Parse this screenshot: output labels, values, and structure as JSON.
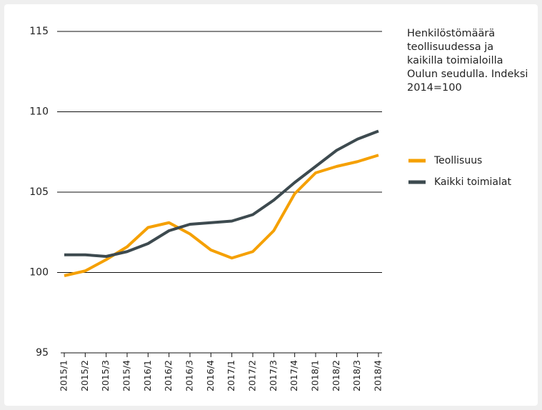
{
  "chart_data": {
    "type": "line",
    "title": "Henkilöstömäärä teollisuudessa ja kaikilla toimialoilla Oulun seudulla. Indeksi 2014=100",
    "categories": [
      "2015/1",
      "2015/2",
      "2015/3",
      "2015/4",
      "2016/1",
      "2016/2",
      "2016/3",
      "2016/4",
      "2017/1",
      "2017/2",
      "2017/3",
      "2017/4",
      "2018/1",
      "2018/2",
      "2018/3",
      "2018/4"
    ],
    "series": [
      {
        "name": "Teollisuus",
        "color": "#f5a000",
        "values": [
          99.8,
          100.1,
          100.8,
          101.6,
          102.8,
          103.1,
          102.4,
          101.4,
          100.9,
          101.3,
          102.6,
          104.9,
          106.2,
          106.6,
          106.9,
          107.3
        ]
      },
      {
        "name": "Kaikki toimialat",
        "color": "#3d4a4f",
        "values": [
          101.1,
          101.1,
          101.0,
          101.3,
          101.8,
          102.6,
          103.0,
          103.1,
          103.2,
          103.6,
          104.5,
          105.6,
          106.6,
          107.6,
          108.3,
          108.8
        ]
      }
    ],
    "ylim": [
      95,
      115
    ],
    "yticks": [
      95,
      100,
      105,
      110,
      115
    ],
    "grid": true,
    "legend": "right"
  }
}
